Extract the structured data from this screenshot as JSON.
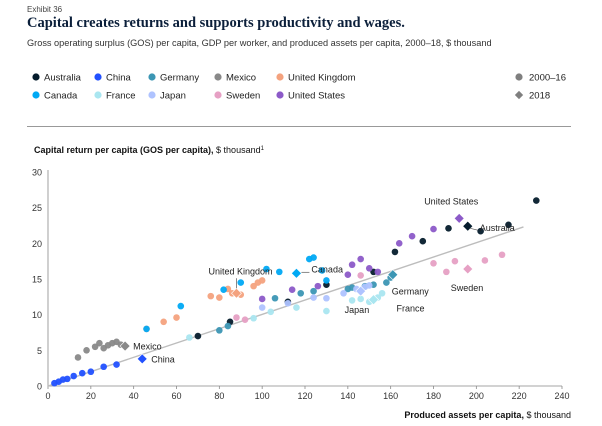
{
  "header": {
    "exhibit": "Exhibit 36",
    "title": "Capital creates returns and supports productivity and wages.",
    "subtitle": "Gross operating surplus (GOS) per capita, GDP per worker, and produced assets per capita, 2000–18, $ thousand"
  },
  "chart_data": {
    "type": "scatter",
    "ylabel": "Capital return per capita (GOS per capita), $ thousand",
    "ylabel_sup": "1",
    "xlabel": "Produced assets per capita, $ thousand",
    "xlim": [
      0,
      240
    ],
    "ylim": [
      0,
      30
    ],
    "xticks": [
      0,
      20,
      40,
      60,
      80,
      100,
      120,
      140,
      160,
      180,
      200,
      220,
      240
    ],
    "yticks": [
      0,
      5,
      10,
      15,
      20,
      25,
      30
    ],
    "grid": "none",
    "legend_placement": "top",
    "trendline": {
      "color": "#bdbdbd",
      "x": [
        0,
        222
      ],
      "y": [
        0,
        22.3
      ]
    },
    "marker_legend": [
      {
        "label": "2000–16",
        "shape": "circle",
        "color": "#7f7f7f"
      },
      {
        "label": "2018",
        "shape": "diamond",
        "color": "#7f7f7f"
      }
    ],
    "series": [
      {
        "name": "Australia",
        "color": "#051c2c",
        "points_2000_16": [
          [
            70,
            7.0
          ],
          [
            85,
            9.0
          ],
          [
            112,
            11.8
          ],
          [
            130,
            14.2
          ],
          [
            152,
            16.0
          ],
          [
            162,
            18.8
          ],
          [
            175,
            20.3
          ],
          [
            187,
            22.1
          ],
          [
            202,
            21.7
          ],
          [
            215,
            22.6
          ],
          [
            228,
            26.0
          ]
        ],
        "point_2018": [
          196,
          22.4
        ],
        "label": "Australia"
      },
      {
        "name": "China",
        "color": "#2251ff",
        "points_2000_16": [
          [
            3,
            0.4
          ],
          [
            5,
            0.6
          ],
          [
            7,
            0.9
          ],
          [
            9,
            1.0
          ],
          [
            12,
            1.4
          ],
          [
            16,
            1.8
          ],
          [
            20,
            2.0
          ],
          [
            26,
            2.7
          ],
          [
            32,
            3.0
          ]
        ],
        "point_2018": [
          44,
          3.8
        ],
        "label": "China"
      },
      {
        "name": "Germany",
        "color": "#3c96b4",
        "points_2000_16": [
          [
            80,
            7.8
          ],
          [
            84,
            8.4
          ],
          [
            106,
            12.3
          ],
          [
            118,
            13.0
          ],
          [
            124,
            13.3
          ],
          [
            140,
            13.6
          ],
          [
            142,
            13.8
          ],
          [
            148,
            14.0
          ],
          [
            152,
            14.2
          ],
          [
            158,
            14.5
          ],
          [
            160,
            15.2
          ]
        ],
        "point_2018": [
          161,
          15.6
        ],
        "label": "Germany"
      },
      {
        "name": "Mexico",
        "color": "#898989",
        "points_2000_16": [
          [
            14,
            4.0
          ],
          [
            18,
            5.0
          ],
          [
            22,
            5.5
          ],
          [
            24,
            6.0
          ],
          [
            26,
            5.3
          ],
          [
            28,
            5.7
          ],
          [
            30,
            6.0
          ],
          [
            32,
            6.2
          ],
          [
            34,
            5.8
          ]
        ],
        "point_2018": [
          36,
          5.6
        ],
        "label": "Mexico"
      },
      {
        "name": "United Kingdom",
        "color": "#f4a27e",
        "points_2000_16": [
          [
            46,
            8.0
          ],
          [
            54,
            9.0
          ],
          [
            60,
            9.6
          ],
          [
            76,
            12.6
          ],
          [
            80,
            12.4
          ],
          [
            84,
            13.6
          ],
          [
            86,
            13.0
          ],
          [
            90,
            12.8
          ],
          [
            96,
            14.0
          ],
          [
            98,
            14.5
          ],
          [
            100,
            14.8
          ]
        ],
        "point_2018": [
          88,
          13.0
        ],
        "label": "United Kingdom"
      },
      {
        "name": "Canada",
        "color": "#00a9f4",
        "points_2000_16": [
          [
            46,
            8.0
          ],
          [
            62,
            11.2
          ],
          [
            82,
            13.5
          ],
          [
            90,
            14.5
          ],
          [
            102,
            16.4
          ],
          [
            108,
            16.0
          ],
          [
            122,
            17.8
          ],
          [
            124,
            18.0
          ],
          [
            128,
            16.2
          ],
          [
            130,
            14.8
          ]
        ],
        "point_2018": [
          116,
          15.8
        ],
        "label": "Canada"
      },
      {
        "name": "France",
        "color": "#aae6f0",
        "points_2000_16": [
          [
            66,
            6.8
          ],
          [
            96,
            9.5
          ],
          [
            104,
            10.4
          ],
          [
            116,
            11.0
          ],
          [
            130,
            10.5
          ],
          [
            142,
            12.0
          ],
          [
            146,
            12.2
          ],
          [
            150,
            11.8
          ],
          [
            154,
            12.4
          ],
          [
            156,
            13.0
          ]
        ],
        "point_2018": [
          152,
          12.1
        ],
        "label": "France"
      },
      {
        "name": "Japan",
        "color": "#afc3ff",
        "points_2000_16": [
          [
            100,
            11.0
          ],
          [
            112,
            11.6
          ],
          [
            124,
            12.4
          ],
          [
            130,
            12.3
          ],
          [
            138,
            13.0
          ],
          [
            144,
            13.6
          ],
          [
            148,
            13.9
          ],
          [
            150,
            14.1
          ]
        ],
        "point_2018": [
          146,
          13.3
        ],
        "label": "Japan"
      },
      {
        "name": "Sweden",
        "color": "#e6a0c4",
        "points_2000_16": [
          [
            88,
            9.6
          ],
          [
            92,
            9.3
          ],
          [
            146,
            15.5
          ],
          [
            180,
            17.2
          ],
          [
            186,
            16.0
          ],
          [
            190,
            17.5
          ],
          [
            204,
            17.6
          ],
          [
            212,
            18.4
          ]
        ],
        "point_2018": [
          196,
          16.4
        ],
        "label": "Sweden"
      },
      {
        "name": "United States",
        "color": "#8c5ac8",
        "points_2000_16": [
          [
            100,
            12.2
          ],
          [
            114,
            13.5
          ],
          [
            126,
            14.0
          ],
          [
            140,
            15.6
          ],
          [
            142,
            17.0
          ],
          [
            146,
            17.8
          ],
          [
            150,
            16.5
          ],
          [
            154,
            16.0
          ],
          [
            164,
            20.0
          ],
          [
            170,
            21.0
          ],
          [
            180,
            22.0
          ]
        ],
        "point_2018": [
          192,
          23.5
        ],
        "label": "United States"
      }
    ]
  }
}
